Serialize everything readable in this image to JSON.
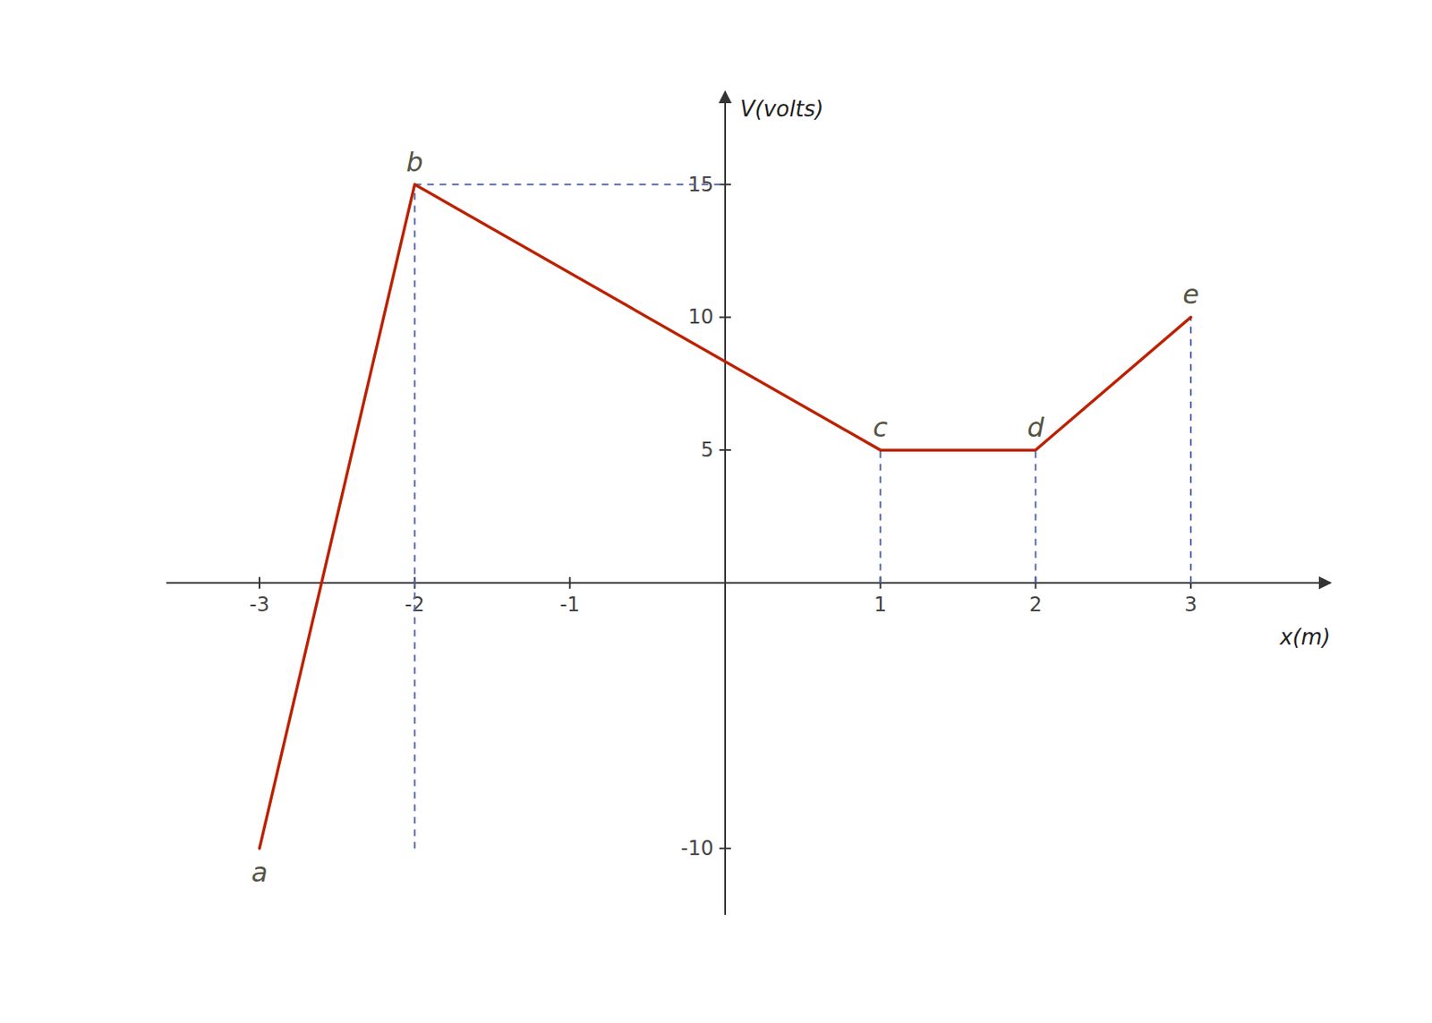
{
  "chart_data": {
    "type": "line",
    "x": [
      -3,
      -2,
      1,
      2,
      3
    ],
    "values": [
      -10,
      15,
      5,
      5,
      10
    ],
    "color": "#bb2200",
    "xlim": [
      -3.6,
      3.9
    ],
    "ylim": [
      -12.5,
      18.5
    ],
    "xticks": [
      -3,
      -2,
      -1,
      1,
      2,
      3
    ],
    "yticks": [
      -10,
      5,
      10,
      15
    ],
    "xlabel": "x(m)",
    "ylabel": "V(volts)",
    "grid": false,
    "reference_lines": [
      {
        "x1": -2,
        "y1": -10,
        "x2": -2,
        "y2": 15
      },
      {
        "x1": 1,
        "y1": 0,
        "x2": 1,
        "y2": 5
      },
      {
        "x1": 2,
        "y1": 0,
        "x2": 2,
        "y2": 5
      },
      {
        "x1": 3,
        "y1": 0,
        "x2": 3,
        "y2": 10
      },
      {
        "x1": -2,
        "y1": 15,
        "x2": 0,
        "y2": 15
      }
    ],
    "annotations": [
      {
        "text": "a",
        "x": -3,
        "y": -10
      },
      {
        "text": "b",
        "x": -2,
        "y": 15
      },
      {
        "text": "c",
        "x": 1,
        "y": 5
      },
      {
        "text": "d",
        "x": 2,
        "y": 5
      },
      {
        "text": "e",
        "x": 3,
        "y": 10
      }
    ]
  }
}
